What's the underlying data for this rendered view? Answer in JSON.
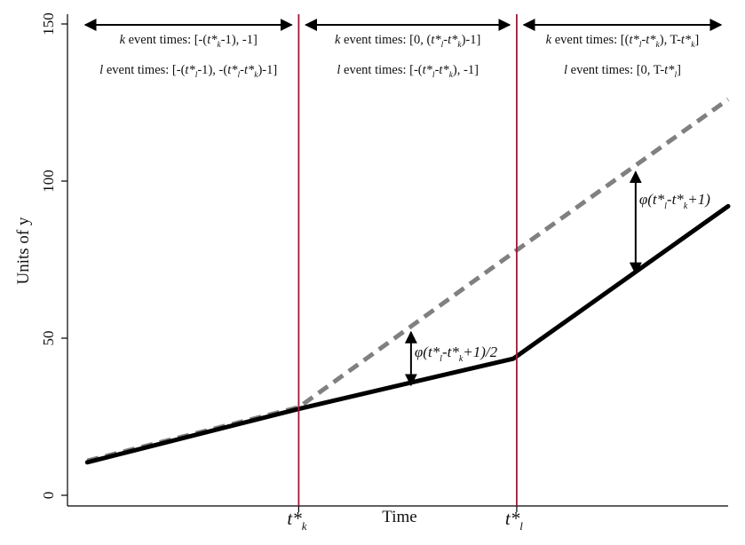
{
  "chart_data": {
    "type": "line",
    "title": "",
    "xlabel": "Time",
    "ylabel": "Units of y",
    "ylim": [
      0,
      150
    ],
    "yticks": [
      "0",
      "50",
      "100",
      "150"
    ],
    "xlim": [
      0,
      100
    ],
    "grid": false,
    "legend": "none",
    "vlines": [
      {
        "x": 35,
        "label_main": "t*",
        "label_sub": "k",
        "color": "#a0183c"
      },
      {
        "x": 68,
        "label_main": "t*",
        "label_sub": "l",
        "color": "#a0183c"
      }
    ],
    "series": [
      {
        "style": "solid",
        "color": "#000000",
        "x": [
          3,
          35,
          67.5,
          100
        ],
        "y": [
          10.5,
          27.5,
          43.5,
          92
        ]
      },
      {
        "style": "dashed",
        "color": "#808080",
        "x": [
          3,
          35,
          68,
          100
        ],
        "y": [
          11,
          28,
          78,
          126
        ]
      }
    ],
    "regions": [
      {
        "k_lines": [
          "k",
          " event times: [-(",
          "t*",
          "k",
          "-1",
          "), -1]"
        ],
        "l_lines": [
          "l",
          " event times: [-(",
          "t*",
          "l",
          "-1",
          "), -(",
          "t*",
          "l",
          "-",
          "t*",
          "k",
          ")-1]"
        ]
      },
      {
        "k_lines": [
          "k",
          " event times: [0, (",
          "t*",
          "l",
          "-",
          "t*",
          "k",
          ")-1]"
        ],
        "l_lines": [
          "l",
          " event times: [-(",
          "t*",
          "l",
          "-",
          "t*",
          "k",
          "), -1]"
        ]
      },
      {
        "k_lines": [
          "k",
          " event times: [(",
          "t*",
          "l",
          "-",
          "t*",
          "k",
          "), T-",
          "t*",
          "k",
          "]"
        ],
        "l_lines": [
          "l",
          " event times: [0, T-",
          "t*",
          "l",
          "]"
        ]
      }
    ],
    "annotations": [
      {
        "x": 52,
        "y_from": 34.5,
        "y_to": 52.5,
        "parts": [
          "φ(t*",
          "l",
          "-t*",
          "k",
          "+1)/2"
        ]
      },
      {
        "x": 86,
        "y_from": 70,
        "y_to": 103.5,
        "parts": [
          "φ(t*",
          "l",
          "-t*",
          "k",
          "+1)"
        ]
      }
    ]
  }
}
